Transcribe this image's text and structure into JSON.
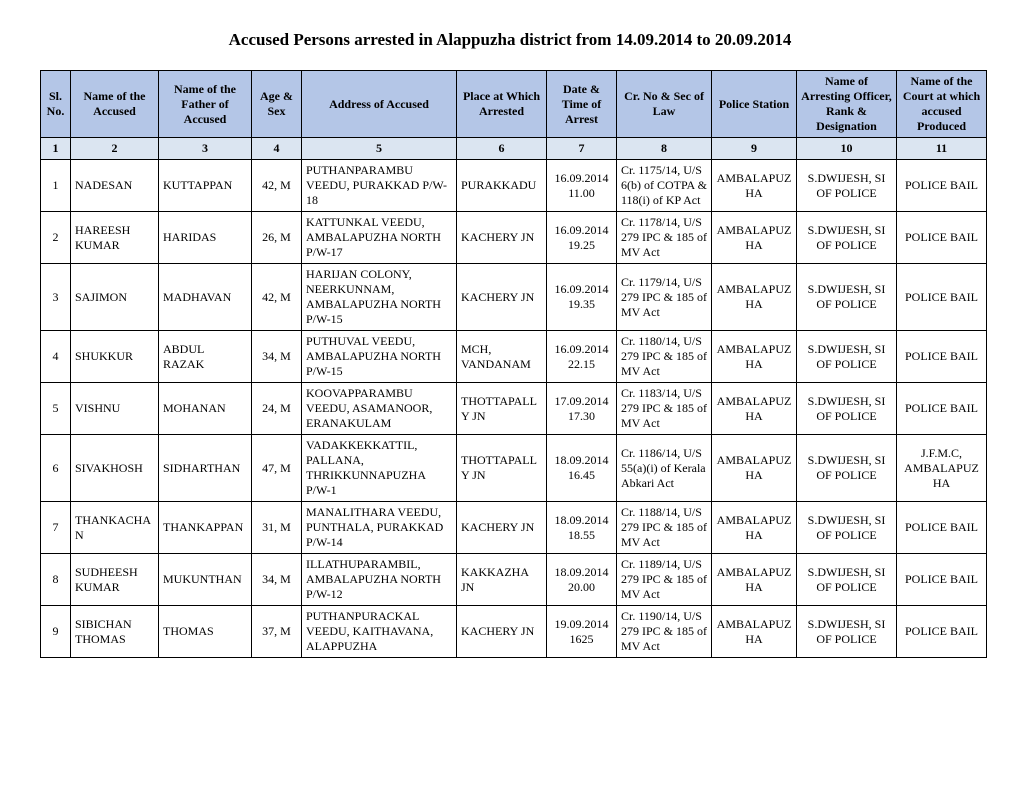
{
  "title": "Accused Persons arrested in  Alappuzha district from 14.09.2014 to 20.09.2014",
  "columns": [
    {
      "label": "Sl. No.",
      "num": "1"
    },
    {
      "label": "Name of the Accused",
      "num": "2"
    },
    {
      "label": "Name of the Father of Accused",
      "num": "3"
    },
    {
      "label": "Age & Sex",
      "num": "4"
    },
    {
      "label": "Address of Accused",
      "num": "5"
    },
    {
      "label": "Place at Which Arrested",
      "num": "6"
    },
    {
      "label": "Date & Time of Arrest",
      "num": "7"
    },
    {
      "label": "Cr. No & Sec of Law",
      "num": "8"
    },
    {
      "label": "Police Station",
      "num": "9"
    },
    {
      "label": "Name of Arresting Officer, Rank & Designation",
      "num": "10"
    },
    {
      "label": "Name of the Court at which accused Produced",
      "num": "11"
    }
  ],
  "rows": [
    {
      "sl": "1",
      "name": "NADESAN",
      "father": "KUTTAPPAN",
      "age": "42, M",
      "address": "PUTHANPARAMBU VEEDU, PURAKKAD P/W-18",
      "place": "PURAKKADU",
      "datetime": "16.09.2014 11.00",
      "crno": "Cr. 1175/14, U/S 6(b) of COTPA & 118(i) of KP Act",
      "station": "AMBALAPUZHA",
      "officer": "S.DWIJESH, SI OF POLICE",
      "court": "POLICE BAIL"
    },
    {
      "sl": "2",
      "name": "HAREESH KUMAR",
      "father": "HARIDAS",
      "age": "26, M",
      "address": "KATTUNKAL VEEDU, AMBALAPUZHA NORTH P/W-17",
      "place": "KACHERY JN",
      "datetime": "16.09.2014 19.25",
      "crno": "Cr. 1178/14, U/S 279 IPC & 185 of MV Act",
      "station": "AMBALAPUZHA",
      "officer": "S.DWIJESH, SI OF POLICE",
      "court": "POLICE BAIL"
    },
    {
      "sl": "3",
      "name": "SAJIMON",
      "father": "MADHAVAN",
      "age": "42, M",
      "address": "HARIJAN COLONY, NEERKUNNAM, AMBALAPUZHA NORTH P/W-15",
      "place": "KACHERY JN",
      "datetime": "16.09.2014 19.35",
      "crno": "Cr. 1179/14, U/S 279 IPC & 185 of MV Act",
      "station": "AMBALAPUZHA",
      "officer": "S.DWIJESH, SI OF POLICE",
      "court": "POLICE BAIL"
    },
    {
      "sl": "4",
      "name": "SHUKKUR",
      "father": "ABDUL RAZAK",
      "age": "34, M",
      "address": "PUTHUVAL VEEDU, AMBALAPUZHA NORTH P/W-15",
      "place": "MCH, VANDANAM",
      "datetime": "16.09.2014 22.15",
      "crno": "Cr. 1180/14, U/S 279 IPC & 185 of MV Act",
      "station": "AMBALAPUZHA",
      "officer": "S.DWIJESH, SI OF POLICE",
      "court": "POLICE BAIL"
    },
    {
      "sl": "5",
      "name": "VISHNU",
      "father": "MOHANAN",
      "age": "24, M",
      "address": "KOOVAPPARAMBU VEEDU, ASAMANOOR, ERANAKULAM",
      "place": "THOTTAPALLY JN",
      "datetime": "17.09.2014 17.30",
      "crno": "Cr. 1183/14, U/S 279 IPC & 185 of MV Act",
      "station": "AMBALAPUZHA",
      "officer": "S.DWIJESH, SI OF POLICE",
      "court": "POLICE BAIL"
    },
    {
      "sl": "6",
      "name": "SIVAKHOSH",
      "father": "SIDHARTHAN",
      "age": "47, M",
      "address": "VADAKKEKKATTIL, PALLANA, THRIKKUNNAPUZHA P/W-1",
      "place": "THOTTAPALLY JN",
      "datetime": "18.09.2014 16.45",
      "crno": "Cr. 1186/14, U/S 55(a)(i) of Kerala Abkari Act",
      "station": "AMBALAPUZHA",
      "officer": "S.DWIJESH, SI OF POLICE",
      "court": "J.F.M.C, AMBALAPUZHA"
    },
    {
      "sl": "7",
      "name": "THANKACHAN",
      "father": "THANKAPPAN",
      "age": "31, M",
      "address": "MANALITHARA VEEDU, PUNTHALA, PURAKKAD P/W-14",
      "place": "KACHERY JN",
      "datetime": "18.09.2014 18.55",
      "crno": "Cr. 1188/14, U/S 279 IPC & 185 of MV Act",
      "station": "AMBALAPUZHA",
      "officer": "S.DWIJESH, SI OF POLICE",
      "court": "POLICE BAIL"
    },
    {
      "sl": "8",
      "name": "SUDHEESH KUMAR",
      "father": "MUKUNTHAN",
      "age": "34, M",
      "address": "ILLATHUPARAMBIL, AMBALAPUZHA NORTH P/W-12",
      "place": "KAKKAZHA JN",
      "datetime": "18.09.2014 20.00",
      "crno": "Cr. 1189/14, U/S 279 IPC & 185 of MV Act",
      "station": "AMBALAPUZHA",
      "officer": "S.DWIJESH, SI OF POLICE",
      "court": "POLICE BAIL"
    },
    {
      "sl": "9",
      "name": "SIBICHAN THOMAS",
      "father": "THOMAS",
      "age": "37, M",
      "address": "PUTHANPURACKAL VEEDU, KAITHAVANA, ALAPPUZHA",
      "place": "KACHERY JN",
      "datetime": "19.09.2014 1625",
      "crno": "Cr. 1190/14, U/S 279 IPC & 185 of MV Act",
      "station": "AMBALAPUZHA",
      "officer": "S.DWIJESH, SI OF POLICE",
      "court": "POLICE BAIL"
    }
  ]
}
